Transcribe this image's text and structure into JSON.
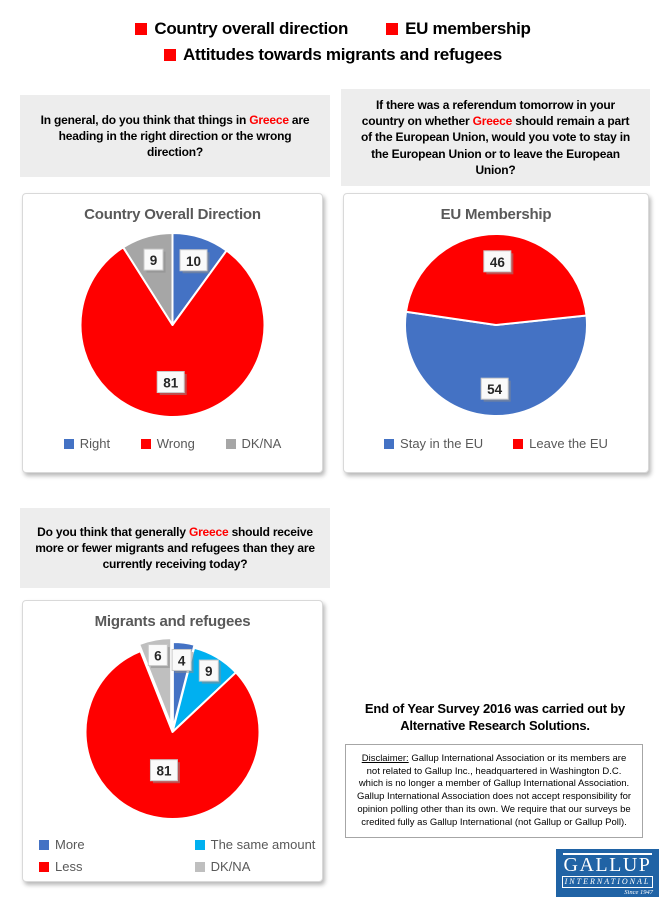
{
  "header": {
    "bullet_color": "#FF0000",
    "items": [
      {
        "label": "Country overall direction"
      },
      {
        "label": "EU membership"
      },
      {
        "label": "Attitudes towards migrants and refugees"
      }
    ]
  },
  "questions": [
    {
      "before": "In general, do you think that things in ",
      "highlight": "Greece",
      "after": " are heading in the right direction or the wrong direction?"
    },
    {
      "before": "If there was a referendum tomorrow in your country on whether ",
      "highlight": "Greece",
      "after": " should remain a part of the European Union, would you vote to stay in the European Union or to leave the European Union?"
    },
    {
      "before": "Do you think that generally ",
      "highlight": "Greece",
      "after": " should receive more or fewer migrants and refugees than they are currently receiving today?"
    }
  ],
  "chart_data": [
    {
      "type": "pie",
      "title": "Country Overall Direction",
      "start_angle": 0,
      "radius": 92,
      "legend_position": "bottom",
      "slices": [
        {
          "label": "Right",
          "value": 10,
          "color": "#4472C4",
          "label_r": 0.74
        },
        {
          "label": "Wrong",
          "value": 81,
          "color": "#FF0000",
          "label_r": 0.62
        },
        {
          "label": "DK/NA",
          "value": 9,
          "color": "#A6A6A6",
          "label_r": 0.74
        }
      ]
    },
    {
      "type": "pie",
      "title": "EU Membership",
      "start_angle": 84,
      "radius": 91,
      "legend_position": "bottom",
      "slices": [
        {
          "label": "Stay in the EU",
          "value": 54,
          "color": "#4472C4",
          "label_r": 0.7
        },
        {
          "label": "Leave the EU",
          "value": 46,
          "color": "#FF0000",
          "label_r": 0.7
        }
      ]
    },
    {
      "type": "pie",
      "title": "Migrants and refugees",
      "start_angle": 0,
      "radius": 87,
      "legend_position": "bottom",
      "slices": [
        {
          "label": "More",
          "value": 4,
          "color": "#4472C4",
          "label_r": 0.8,
          "explode": 3
        },
        {
          "label": "The same amount",
          "value": 9,
          "color": "#00B0F0",
          "label_r": 0.82
        },
        {
          "label": "Less",
          "value": 81,
          "color": "#FF0000",
          "label_r": 0.45
        },
        {
          "label": "DK/NA",
          "value": 6,
          "color": "#BFBFBF",
          "label_r": 0.82,
          "explode": 7
        }
      ]
    }
  ],
  "source_note": {
    "text": "End of Year Survey 2016 was carried out by Alternative Research Solutions."
  },
  "disclaimer": {
    "label": "Disclaimer:",
    "body": " Gallup International Association or its members are not related to Gallup Inc., headquartered in Washington D.C. which is no longer a member of Gallup International Association. Gallup International Association does not accept responsibility for opinion polling other than its own. We require that our surveys be credited fully as Gallup International (not Gallup or Gallup Poll)."
  },
  "logo": {
    "name": "GALLUP",
    "subtitle": "INTERNATIONAL",
    "since": "Since 1947"
  }
}
